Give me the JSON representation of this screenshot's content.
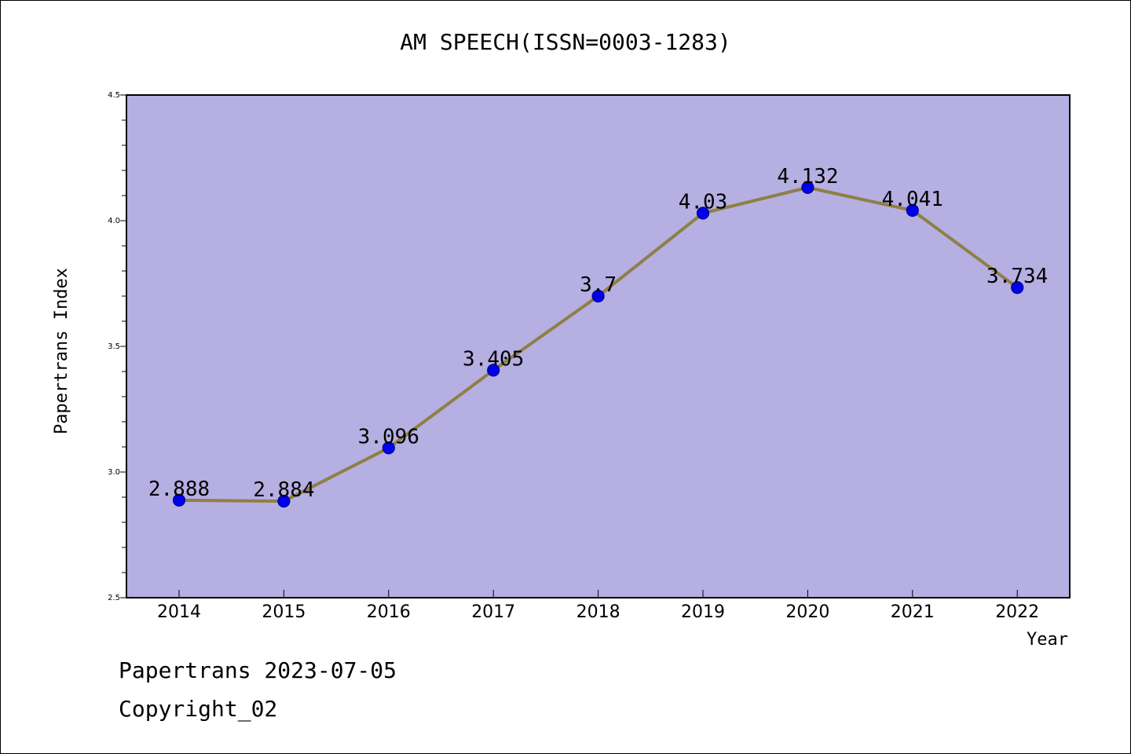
{
  "chart_data": {
    "type": "line",
    "title": "AM SPEECH(ISSN=0003-1283)",
    "xlabel": "Year",
    "ylabel": "Papertrans Index",
    "categories": [
      "2014",
      "2015",
      "2016",
      "2017",
      "2018",
      "2019",
      "2020",
      "2021",
      "2022"
    ],
    "series": [
      {
        "values": [
          2.888,
          2.884,
          3.096,
          3.405,
          3.7,
          4.03,
          4.132,
          4.041,
          3.734
        ],
        "labels": [
          "2.888",
          "2.884",
          "3.096",
          "3.405",
          "3.7",
          "4.03",
          "4.132",
          "4.041",
          "3.734"
        ]
      }
    ],
    "ylim": [
      2.5,
      4.5
    ],
    "yticks": [
      "2.5",
      "3.0",
      "3.5",
      "4.0",
      "4.5"
    ],
    "grid": false,
    "colors": {
      "plot_background": "#b5afe2",
      "line": "#8e7f45",
      "marker_fill": "#0000ee",
      "marker_edge": "#00008b"
    }
  },
  "footer": {
    "date_line": "Papertrans 2023-07-05",
    "copyright_line": "Copyright_02"
  }
}
